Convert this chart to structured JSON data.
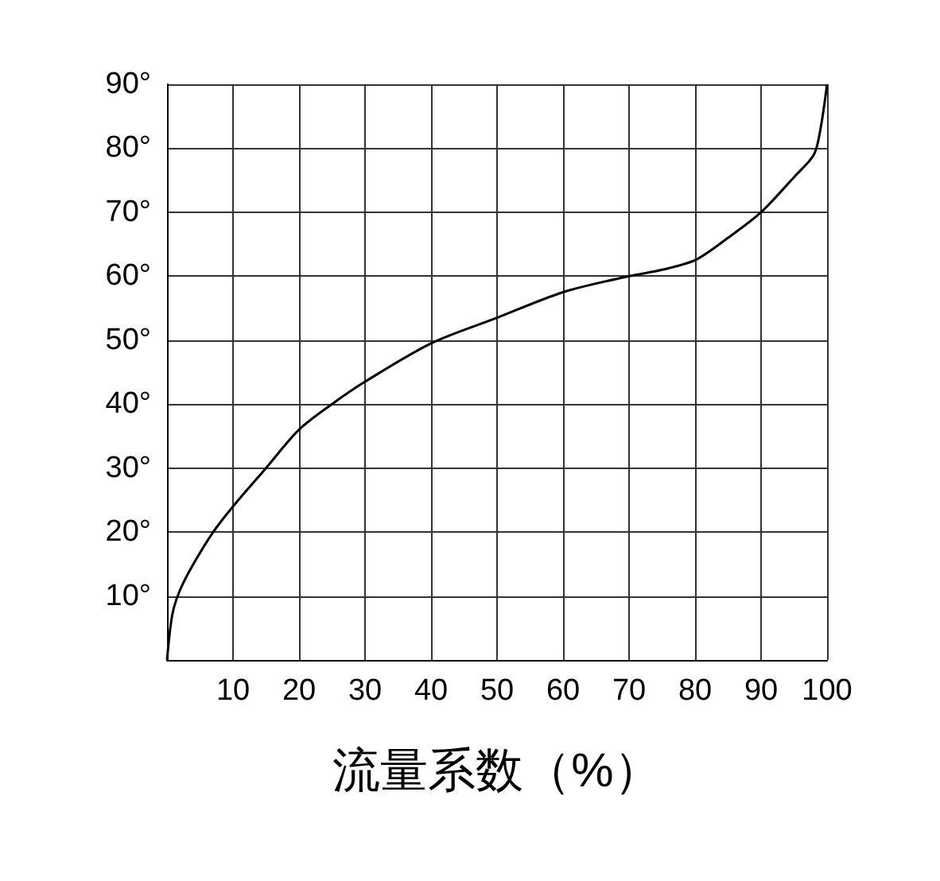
{
  "chart_data": {
    "type": "line",
    "xlabel": "流量系数（%）",
    "x": [
      0,
      0.5,
      1,
      2,
      4,
      7,
      10,
      15,
      20,
      25,
      30,
      40,
      50,
      60,
      70,
      75,
      80,
      85,
      90,
      95,
      98,
      99,
      100
    ],
    "series": [
      {
        "color": "#000000",
        "values": [
          0,
          5,
          8,
          11,
          15,
          20,
          24,
          30,
          36,
          40,
          43.5,
          49.5,
          53.5,
          57.5,
          60,
          61,
          62.5,
          66,
          70,
          75.5,
          79,
          83,
          90
        ]
      }
    ],
    "xlim": [
      0,
      100
    ],
    "ylim": [
      0,
      90
    ],
    "xticks": [
      {
        "value": 0,
        "label": null
      },
      10,
      20,
      30,
      40,
      50,
      60,
      70,
      80,
      90,
      100
    ],
    "yticks": [
      {
        "value": 0,
        "label": null
      },
      {
        "value": 10,
        "label": "10°"
      },
      {
        "value": 20,
        "label": "20°"
      },
      {
        "value": 30,
        "label": "30°"
      },
      {
        "value": 40,
        "label": "40°"
      },
      {
        "value": 50,
        "label": "50°"
      },
      {
        "value": 60,
        "label": "60°"
      },
      {
        "value": 70,
        "label": "70°"
      },
      {
        "value": 80,
        "label": "80°"
      },
      {
        "value": 90,
        "label": "90°"
      }
    ],
    "grid": true,
    "marker": "none",
    "line_style": "solid"
  }
}
